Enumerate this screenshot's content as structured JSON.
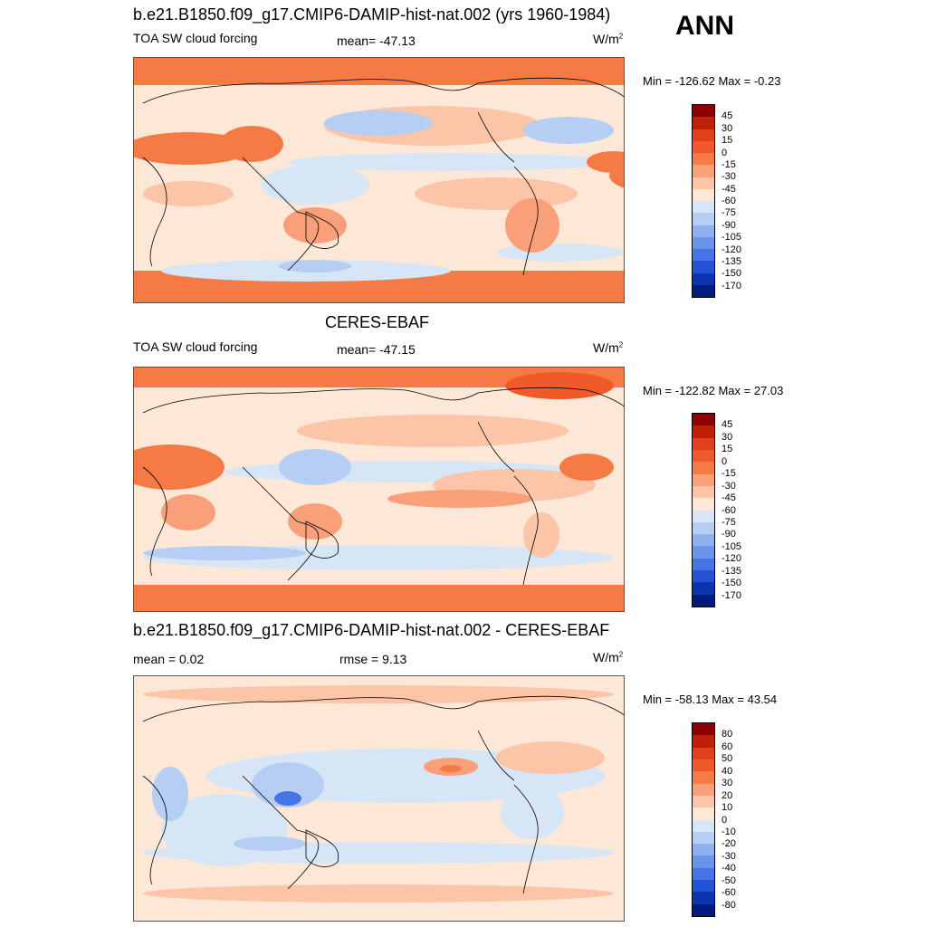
{
  "season": "ANN",
  "panels": [
    {
      "title": "b.e21.B1850.f09_g17.CMIP6-DAMIP-hist-nat.002 (yrs 1960-1984)",
      "variable": "TOA SW cloud forcing",
      "stat1": "mean= -47.13",
      "stat2": "",
      "units": "W/m",
      "units_exp": "2",
      "minmax": "Min = -126.62 Max =  -0.23",
      "colorbar": {
        "labels": [
          "45",
          "30",
          "15",
          "0",
          "-15",
          "-30",
          "-45",
          "-60",
          "-75",
          "-90",
          "-105",
          "-120",
          "-135",
          "-150",
          "-170"
        ],
        "colors": [
          "#8b0000",
          "#c0200a",
          "#e0401a",
          "#f05a2a",
          "#f57a45",
          "#f9a07a",
          "#fcc5a8",
          "#fde8d8",
          "#d6e6f7",
          "#b5cef2",
          "#8fb2ee",
          "#6b93ea",
          "#4673e6",
          "#2452d6",
          "#0c34b0",
          "#001a80"
        ]
      }
    },
    {
      "title": "CERES-EBAF",
      "variable": "TOA SW cloud forcing",
      "stat1": "mean= -47.15",
      "stat2": "",
      "units": "W/m",
      "units_exp": "2",
      "minmax": "Min = -122.82 Max =  27.03",
      "colorbar": {
        "labels": [
          "45",
          "30",
          "15",
          "0",
          "-15",
          "-30",
          "-45",
          "-60",
          "-75",
          "-90",
          "-105",
          "-120",
          "-135",
          "-150",
          "-170"
        ],
        "colors": [
          "#8b0000",
          "#c0200a",
          "#e0401a",
          "#f05a2a",
          "#f57a45",
          "#f9a07a",
          "#fcc5a8",
          "#fde8d8",
          "#d6e6f7",
          "#b5cef2",
          "#8fb2ee",
          "#6b93ea",
          "#4673e6",
          "#2452d6",
          "#0c34b0",
          "#001a80"
        ]
      }
    },
    {
      "title": "b.e21.B1850.f09_g17.CMIP6-DAMIP-hist-nat.002 - CERES-EBAF",
      "variable": "",
      "stat1": "mean =   0.02",
      "stat2": "rmse =   9.13",
      "units": "W/m",
      "units_exp": "2",
      "minmax": "Min = -58.13 Max =  43.54",
      "colorbar": {
        "labels": [
          "80",
          "60",
          "50",
          "40",
          "30",
          "20",
          "10",
          "0",
          "-10",
          "-20",
          "-30",
          "-40",
          "-50",
          "-60",
          "-80"
        ],
        "colors": [
          "#8b0000",
          "#c0200a",
          "#e0401a",
          "#f05a2a",
          "#f57a45",
          "#f9a07a",
          "#fcc5a8",
          "#fde8d8",
          "#d6e6f7",
          "#b5cef2",
          "#8fb2ee",
          "#6b93ea",
          "#4673e6",
          "#2452d6",
          "#0c34b0",
          "#001a80"
        ]
      }
    }
  ]
}
